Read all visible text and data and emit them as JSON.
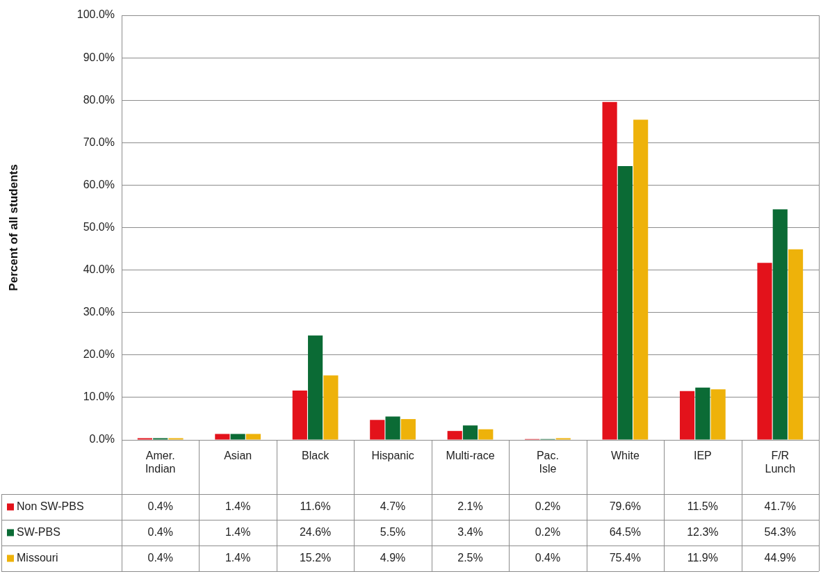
{
  "chart_data": {
    "type": "bar",
    "ylabel": "Percent of all students",
    "categories": [
      "Amer. Indian",
      "Asian",
      "Black",
      "Hispanic",
      "Multi-race",
      "Pac. Isle",
      "White",
      "IEP",
      "F/R Lunch"
    ],
    "series": [
      {
        "name": "Non SW-PBS",
        "color": "#e3121b",
        "values": [
          0.4,
          1.4,
          11.6,
          4.7,
          2.1,
          0.2,
          79.6,
          11.5,
          41.7
        ],
        "value_labels": [
          "0.4%",
          "1.4%",
          "11.6%",
          "4.7%",
          "2.1%",
          "0.2%",
          "79.6%",
          "11.5%",
          "41.7%"
        ]
      },
      {
        "name": "SW-PBS",
        "color": "#0b6b35",
        "values": [
          0.4,
          1.4,
          24.6,
          5.5,
          3.4,
          0.2,
          64.5,
          12.3,
          54.3
        ],
        "value_labels": [
          "0.4%",
          "1.4%",
          "24.6%",
          "5.5%",
          "3.4%",
          "0.2%",
          "64.5%",
          "12.3%",
          "54.3%"
        ]
      },
      {
        "name": "Missouri",
        "color": "#eeb20a",
        "values": [
          0.4,
          1.4,
          15.2,
          4.9,
          2.5,
          0.4,
          75.4,
          11.9,
          44.9
        ],
        "value_labels": [
          "0.4%",
          "1.4%",
          "15.2%",
          "4.9%",
          "2.5%",
          "0.4%",
          "75.4%",
          "11.9%",
          "44.9%"
        ]
      }
    ],
    "ylim": [
      0,
      100
    ],
    "yticks": [
      {
        "value": 0,
        "label": "0.0%"
      },
      {
        "value": 10,
        "label": "10.0%"
      },
      {
        "value": 20,
        "label": "20.0%"
      },
      {
        "value": 30,
        "label": "30.0%"
      },
      {
        "value": 40,
        "label": "40.0%"
      },
      {
        "value": 50,
        "label": "50.0%"
      },
      {
        "value": 60,
        "label": "60.0%"
      },
      {
        "value": 70,
        "label": "70.0%"
      },
      {
        "value": 80,
        "label": "80.0%"
      },
      {
        "value": 90,
        "label": "90.0%"
      },
      {
        "value": 100,
        "label": "100.0%"
      }
    ],
    "grid": "y",
    "legend": "bottom left"
  }
}
